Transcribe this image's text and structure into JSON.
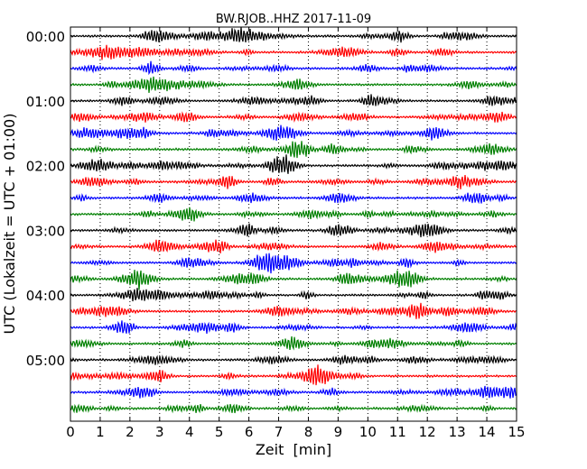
{
  "chart_data": {
    "type": "line",
    "title": "BW.RJOB..HHZ 2017-11-09",
    "xlabel": "Zeit  [min]",
    "ylabel": "UTC (Lokalzeit = UTC + 01:00)",
    "xlim": [
      0,
      15
    ],
    "x_ticks": [
      "0",
      "1",
      "2",
      "3",
      "4",
      "5",
      "6",
      "7",
      "8",
      "9",
      "10",
      "11",
      "12",
      "13",
      "14",
      "15"
    ],
    "hour_labels": [
      "00:00",
      "01:00",
      "02:00",
      "03:00",
      "04:00",
      "05:00"
    ],
    "traces_per_hour": 4,
    "trace_count": 24,
    "trace_colors": [
      "#000000",
      "#ff0000",
      "#0000ff",
      "#008000"
    ],
    "vertical_gridlines": "dotted at every minute",
    "legend": "none"
  }
}
